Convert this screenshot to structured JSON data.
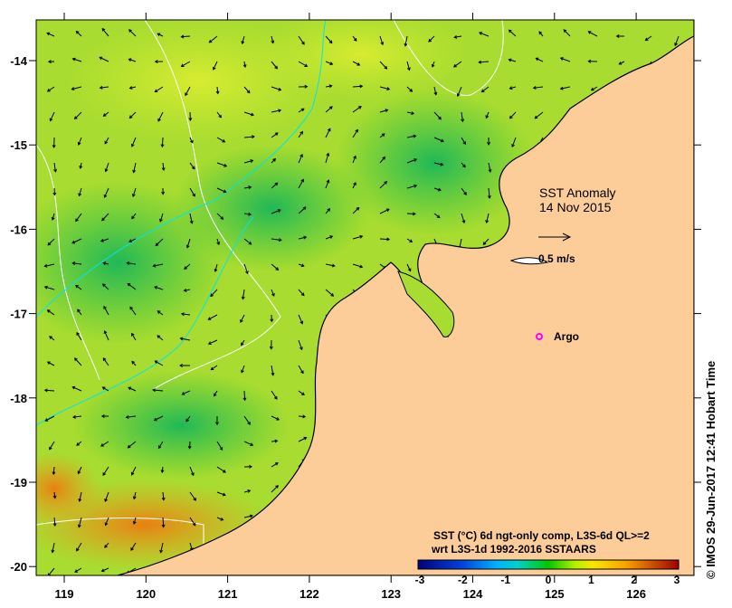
{
  "map": {
    "title": "SST Anomaly",
    "date": "14 Nov 2015",
    "scale_arrow_label": "0.5 m/s",
    "marker_label": "Argo",
    "legend_line1": "SST (°C) 6d ngt-only comp, L3S-6d QL>=2",
    "legend_line2": "wrt L3S-1d 1992-2016 SSTAARS",
    "colorbar_ticks": [
      "-3",
      "-2",
      "-1",
      "0",
      "1",
      "2",
      "3"
    ],
    "colorbar_range": [
      -3,
      3
    ],
    "lon_ticks": [
      "119",
      "120",
      "121",
      "122",
      "123",
      "124",
      "125",
      "126"
    ],
    "lat_ticks": [
      "-14",
      "-15",
      "-16",
      "-17",
      "-18",
      "-19",
      "-20"
    ],
    "credit": "© IMOS 29-Jun-2017 12:41 Hobart Time",
    "colors": {
      "land": "#fccc99",
      "ocean": "#9ad82a",
      "marker": "#ff00ff",
      "contour": "#ffffff",
      "track": "#00e5ee"
    }
  }
}
